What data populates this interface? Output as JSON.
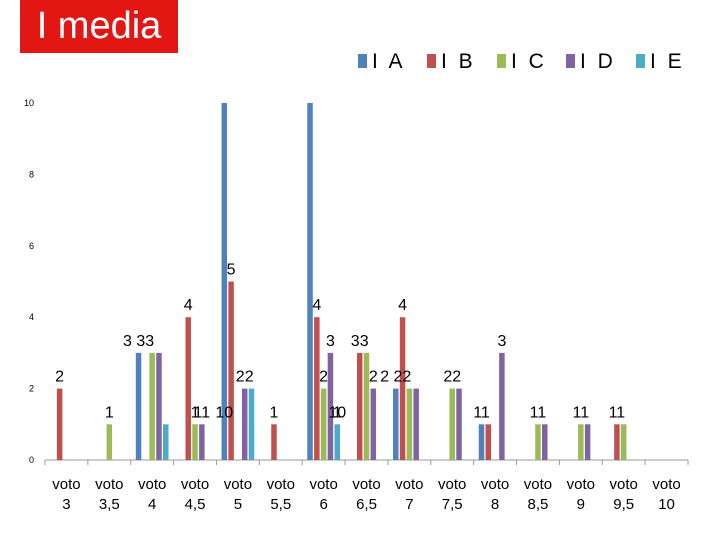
{
  "chart_data": {
    "type": "bar",
    "title": "I media",
    "categories": [
      "voto 3",
      "voto 3,5",
      "voto 4",
      "voto 4,5",
      "voto 5",
      "voto 5,5",
      "voto 6",
      "voto 6,5",
      "voto 7",
      "voto 7,5",
      "voto 8",
      "voto 8,5",
      "voto 9",
      "voto 9,5",
      "voto 10"
    ],
    "series": [
      {
        "name": "I A",
        "color": "#4f81bd",
        "values": [
          0,
          0,
          3,
          0,
          10,
          0,
          10,
          0,
          2,
          0,
          1,
          0,
          0,
          0,
          0
        ]
      },
      {
        "name": "I B",
        "color": "#c0504d",
        "values": [
          2,
          0,
          0,
          4,
          5,
          1,
          4,
          3,
          4,
          0,
          1,
          0,
          0,
          1,
          0
        ]
      },
      {
        "name": "I C",
        "color": "#9bbb59",
        "values": [
          0,
          1,
          3,
          1,
          0,
          0,
          2,
          3,
          2,
          2,
          0,
          1,
          1,
          1,
          0
        ]
      },
      {
        "name": "I D",
        "color": "#8064a2",
        "values": [
          0,
          0,
          3,
          1,
          2,
          0,
          3,
          2,
          2,
          2,
          3,
          1,
          1,
          0,
          0
        ]
      },
      {
        "name": "I E",
        "color": "#4bacc6",
        "values": [
          0,
          0,
          1,
          0,
          2,
          0,
          1,
          0,
          0,
          0,
          0,
          0,
          0,
          0,
          0
        ]
      }
    ],
    "data_labels": [
      {
        "x": "voto 3",
        "text": "2"
      },
      {
        "x": "voto 3,5",
        "text": "1"
      },
      {
        "x": "voto 4",
        "text": "3 33"
      },
      {
        "x": "voto 4,5",
        "text": "4"
      },
      {
        "x": "voto 4,5",
        "text": "1"
      },
      {
        "x": "voto 4,5",
        "text": "11"
      },
      {
        "x": "voto 5",
        "text": "10"
      },
      {
        "x": "voto 5",
        "text": "5"
      },
      {
        "x": "voto 5",
        "text": "22"
      },
      {
        "x": "voto 5,5",
        "text": "1"
      },
      {
        "x": "voto 6",
        "text": "10"
      },
      {
        "x": "voto 6",
        "text": "4"
      },
      {
        "x": "voto 6",
        "text": "3"
      },
      {
        "x": "voto 6",
        "text": "2"
      },
      {
        "x": "voto 6",
        "text": "1"
      },
      {
        "x": "voto 6,5",
        "text": "33"
      },
      {
        "x": "voto 6,5",
        "text": "2"
      },
      {
        "x": "voto 7",
        "text": "4"
      },
      {
        "x": "voto 7",
        "text": "2 22"
      },
      {
        "x": "voto 7,5",
        "text": "22"
      },
      {
        "x": "voto 8",
        "text": "3"
      },
      {
        "x": "voto 8",
        "text": "11"
      },
      {
        "x": "voto 8,5",
        "text": "11"
      },
      {
        "x": "voto 9",
        "text": "11"
      },
      {
        "x": "voto 9,5",
        "text": "11"
      }
    ],
    "y_ticks": [
      "0",
      "2",
      "4",
      "6",
      "8",
      "10"
    ],
    "ylim": [
      0,
      10
    ],
    "grid": false,
    "legend": "top-right"
  }
}
